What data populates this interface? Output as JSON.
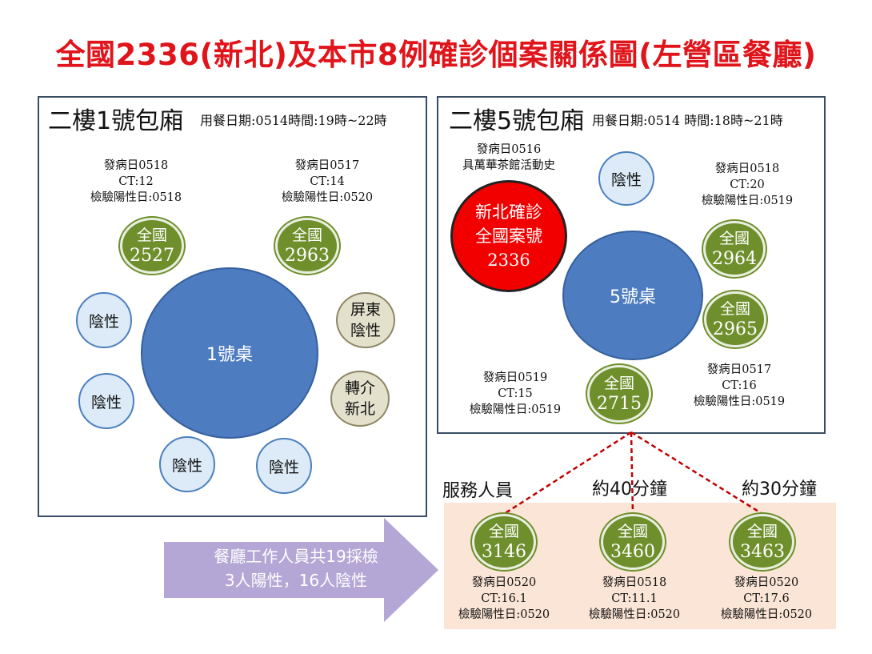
{
  "title": "全國2336(新北)及本市8例確診個案關係圖(左營區餐廳)",
  "colors": {
    "title": "#e0141b",
    "positive_case": "#6f8f2c",
    "table": "#4d7cc0",
    "index_case": "#f20000",
    "negative": "#dcebf7",
    "staff_area": "#fbe5d6",
    "arrow": "#b4a7d6",
    "link_line": "#c00000"
  },
  "room1": {
    "heading": "二樓1號包廂",
    "meal_info": "用餐日期:0514時間:19時~22時",
    "table_label": "1號桌",
    "case_2527": {
      "line1": "全國",
      "line2": "2527",
      "onset": "發病日0518",
      "ct": "CT:12",
      "positive": "檢驗陽性日:0518"
    },
    "case_2963": {
      "line1": "全國",
      "line2": "2963",
      "onset": "發病日0517",
      "ct": "CT:14",
      "positive": "檢驗陽性日:0520"
    },
    "pingtung": {
      "line1": "屏東",
      "line2": "陰性"
    },
    "referred": {
      "line1": "轉介",
      "line2": "新北"
    },
    "negative_label": "陰性"
  },
  "room5": {
    "heading": "二樓5號包廂",
    "meal_info": "用餐日期:0514 時間:18時~21時",
    "table_label": "5號桌",
    "index_case": {
      "line1": "新北確診",
      "line2": "全國案號",
      "line3": "2336",
      "onset": "發病日0516",
      "note": "具萬華茶館活動史"
    },
    "negative_label": "陰性",
    "case_2964": {
      "line1": "全國",
      "line2": "2964",
      "onset": "發病日0518",
      "ct": "CT:20",
      "positive": "檢驗陽性日:0519"
    },
    "case_2965": {
      "line1": "全國",
      "line2": "2965",
      "onset": "發病日0517",
      "ct": "CT:16",
      "positive": "檢驗陽性日:0519"
    },
    "case_2715": {
      "line1": "全國",
      "line2": "2715",
      "onset": "發病日0519",
      "ct": "CT:15",
      "positive": "檢驗陽性日:0519"
    }
  },
  "staff": {
    "label": "服務人員",
    "about40": "約40分鐘",
    "about30": "約30分鐘",
    "case_3146": {
      "line1": "全國",
      "line2": "3146",
      "onset": "發病日0520",
      "ct": "CT:16.1",
      "positive": "檢驗陽性日:0520"
    },
    "case_3460": {
      "line1": "全國",
      "line2": "3460",
      "onset": "發病日0518",
      "ct": "CT:11.1",
      "positive": "檢驗陽性日:0520"
    },
    "case_3463": {
      "line1": "全國",
      "line2": "3463",
      "onset": "發病日0520",
      "ct": "CT:17.6",
      "positive": "檢驗陽性日:0520"
    }
  },
  "arrow": {
    "line1": "餐廳工作人員共19採檢",
    "line2": "3人陽性，16人陰性"
  }
}
